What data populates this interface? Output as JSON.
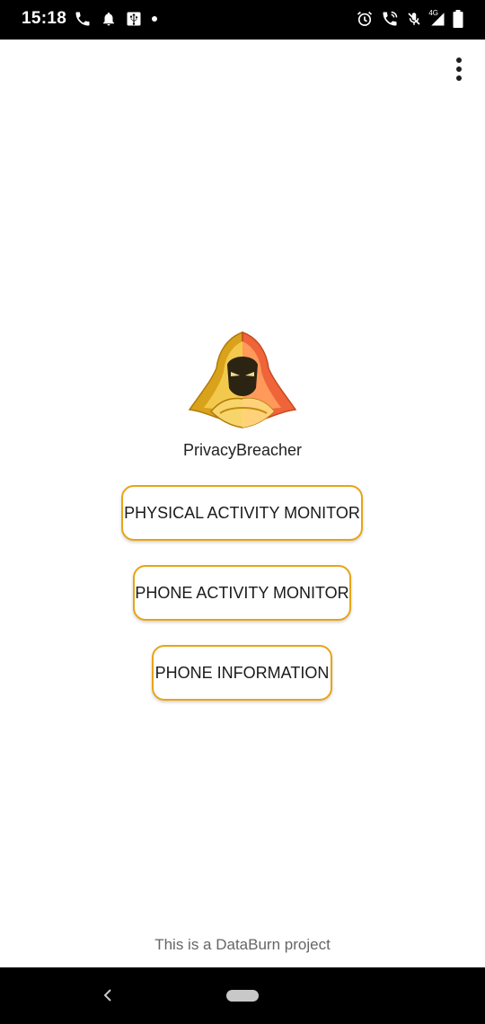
{
  "status_bar": {
    "time": "15:18",
    "network": "4G"
  },
  "app": {
    "name": "PrivacyBreacher"
  },
  "buttons": {
    "physical_activity": "PHYSICAL ACTIVITY MONITOR",
    "phone_activity": "PHONE ACTIVITY MONITOR",
    "phone_information": "PHONE INFORMATION"
  },
  "footer": {
    "text": "This is a DataBurn project"
  },
  "colors": {
    "button_border": "#e8a417",
    "logo_gold": "#d9a21b",
    "logo_orange": "#f0643a"
  },
  "icons": {
    "status_left": [
      "phone-call-icon",
      "notification-bell-icon",
      "usb-icon",
      "dot-icon"
    ],
    "status_right": [
      "alarm-icon",
      "wifi-calling-icon",
      "mic-muted-icon",
      "signal-icon",
      "battery-icon"
    ],
    "app_logo": "hooded-figure-logo",
    "menu": "more-vertical-icon",
    "nav": [
      "back-icon",
      "home-pill-icon"
    ]
  }
}
